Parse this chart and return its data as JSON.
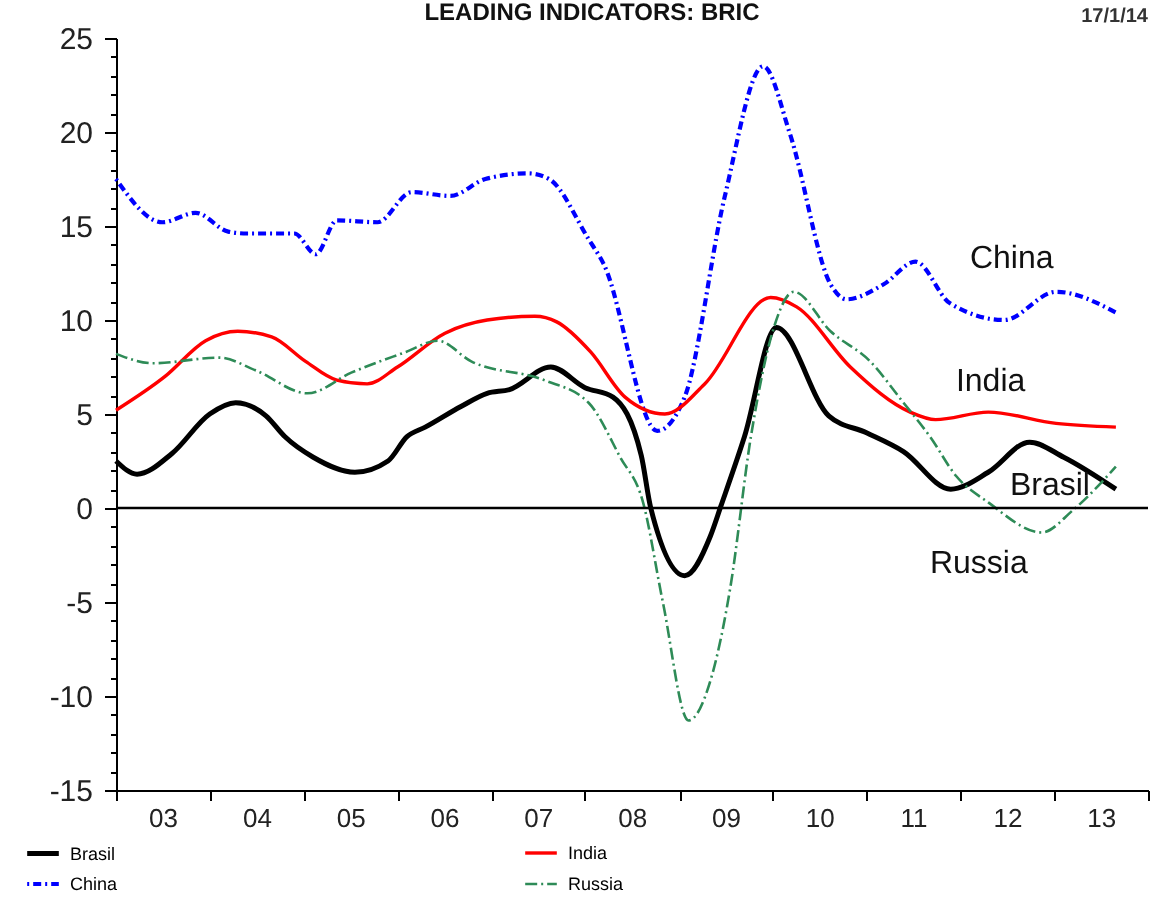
{
  "chart_data": {
    "type": "line",
    "title": "LEADING INDICATORS: BRIC",
    "annotations": [
      "17/1/14"
    ],
    "xlim": [
      "2003",
      "2014"
    ],
    "ylim": [
      -15,
      25
    ],
    "xticks": [
      {
        "value": "2003",
        "label": null
      },
      {
        "value": "2003-07",
        "label": "03"
      },
      {
        "value": "2004",
        "label": null
      },
      {
        "value": "2004-07",
        "label": "04"
      },
      {
        "value": "2005",
        "label": null
      },
      {
        "value": "2005-07",
        "label": "05"
      },
      {
        "value": "2006",
        "label": null
      },
      {
        "value": "2006-07",
        "label": "06"
      },
      {
        "value": "2007",
        "label": null
      },
      {
        "value": "2007-07",
        "label": "07"
      },
      {
        "value": "2008",
        "label": null
      },
      {
        "value": "2008-07",
        "label": "08"
      },
      {
        "value": "2009",
        "label": null
      },
      {
        "value": "2009-07",
        "label": "09"
      },
      {
        "value": "2010",
        "label": null
      },
      {
        "value": "2010-07",
        "label": "10"
      },
      {
        "value": "2011",
        "label": null
      },
      {
        "value": "2011-07",
        "label": "11"
      },
      {
        "value": "2012",
        "label": null
      },
      {
        "value": "2012-07",
        "label": "12"
      },
      {
        "value": "2013",
        "label": null
      },
      {
        "value": "2013-07",
        "label": "13"
      },
      {
        "value": "2014",
        "label": null
      }
    ],
    "yticks": [
      -15,
      {
        "value": -14,
        "label": null
      },
      {
        "value": -13,
        "label": null
      },
      {
        "value": -12,
        "label": null
      },
      {
        "value": -11,
        "label": null
      },
      -10,
      {
        "value": -9,
        "label": null
      },
      {
        "value": -8,
        "label": null
      },
      {
        "value": -7,
        "label": null
      },
      {
        "value": -6,
        "label": null
      },
      -5,
      {
        "value": -4,
        "label": null
      },
      {
        "value": -3,
        "label": null
      },
      {
        "value": -2,
        "label": null
      },
      {
        "value": -1,
        "label": null
      },
      0,
      {
        "value": 1,
        "label": null
      },
      {
        "value": 2,
        "label": null
      },
      {
        "value": 3,
        "label": null
      },
      {
        "value": 4,
        "label": null
      },
      5,
      {
        "value": 6,
        "label": null
      },
      {
        "value": 7,
        "label": null
      },
      {
        "value": 8,
        "label": null
      },
      {
        "value": 9,
        "label": null
      },
      10,
      {
        "value": 11,
        "label": null
      },
      {
        "value": 12,
        "label": null
      },
      {
        "value": 13,
        "label": null
      },
      {
        "value": 14,
        "label": null
      },
      15,
      {
        "value": 16,
        "label": null
      },
      {
        "value": 17,
        "label": null
      },
      {
        "value": 18,
        "label": null
      },
      {
        "value": 19,
        "label": null
      },
      20,
      {
        "value": 21,
        "label": null
      },
      {
        "value": 22,
        "label": null
      },
      {
        "value": 23,
        "label": null
      },
      {
        "value": 24,
        "label": null
      },
      25
    ],
    "ref_lines": [
      {
        "axis": "y",
        "value": 0,
        "color": "#000000"
      }
    ],
    "legend": "bottom",
    "series": [
      {
        "name": "Brasil",
        "color": "#000000",
        "line_style": "solid",
        "x": [
          "2003-01-01",
          "2003-03-24",
          "2003-08-07",
          "2004-01-01",
          "2004-04-11",
          "2004-08-07",
          "2004-10-19",
          "2005-02-07",
          "2005-07-19",
          "2005-11-25",
          "2006-02-07",
          "2006-04-19",
          "2006-09-05",
          "2006-12-16",
          "2007-03-13",
          "2007-08-21",
          "2008-01-01",
          "2008-04-19",
          "2008-08-07",
          "2008-09-13",
          "2009-01-23",
          "2009-05-03",
          "2009-06-13",
          "2009-09-13",
          "2010-01-15",
          "2010-08-07",
          "2011-01-01",
          "2011-05-25",
          "2011-11-25",
          "2012-04-19",
          "2012-09-27",
          "2013-02-07",
          "2013-08-29"
        ],
        "values": [
          2.5,
          1.8,
          2.9,
          5.0,
          5.6,
          4.9,
          3.8,
          2.7,
          1.9,
          2.5,
          3.8,
          4.3,
          5.4,
          6.1,
          6.3,
          7.5,
          6.4,
          5.9,
          2.8,
          0.0,
          -3.6,
          -1.5,
          0.1,
          3.8,
          9.6,
          4.9,
          4.0,
          3.0,
          1.0,
          1.9,
          3.5,
          2.7,
          1.0
        ]
      },
      {
        "name": "China",
        "color": "#0000ff",
        "line_style": "dotted",
        "x": [
          "2003-01-01",
          "2003-07-01",
          "2003-11-07",
          "2004-03-13",
          "2004-05-25",
          "2004-11-25",
          "2005-02-17",
          "2005-05-10",
          "2005-10-15",
          "2006-02-25",
          "2006-07-26",
          "2006-12-09",
          "2007-05-25",
          "2007-08-14",
          "2008-01-15",
          "2008-03-13",
          "2008-10-08",
          "2009-01-23",
          "2009-06-27",
          "2009-11-25",
          "2010-03-09",
          "2010-08-14",
          "2010-10-15",
          "2011-03-09",
          "2011-07-11",
          "2011-11-21",
          "2012-06-20",
          "2013-01-08",
          "2013-08-29"
        ],
        "values": [
          17.5,
          15.2,
          15.7,
          14.7,
          14.6,
          14.6,
          13.5,
          15.3,
          15.2,
          16.8,
          16.6,
          17.5,
          17.8,
          17.5,
          14.3,
          13.0,
          4.1,
          5.9,
          16.5,
          23.5,
          19.9,
          11.9,
          11.1,
          11.9,
          13.1,
          10.9,
          10.0,
          11.5,
          10.4
        ]
      },
      {
        "name": "India",
        "color": "#ff0000",
        "line_style": "solid",
        "x": [
          "2003-01-01",
          "2003-07-11",
          "2003-12-16",
          "2004-04-19",
          "2004-08-29",
          "2005-01-08",
          "2005-05-10",
          "2005-09-05",
          "2006-01-01",
          "2006-07-05",
          "2006-12-16",
          "2007-06-20",
          "2007-09-13",
          "2008-01-23",
          "2008-06-05",
          "2008-11-07",
          "2009-04-11",
          "2009-12-24",
          "2010-04-04",
          "2010-10-30",
          "2011-06-20",
          "2011-09-27",
          "2012-04-19",
          "2013-01-08",
          "2013-08-29"
        ],
        "values": [
          5.2,
          7.0,
          8.9,
          9.4,
          9.1,
          7.8,
          6.8,
          6.6,
          7.5,
          9.3,
          10.0,
          10.2,
          9.9,
          8.3,
          5.9,
          5.0,
          6.6,
          11.2,
          10.7,
          7.5,
          5.1,
          4.7,
          5.1,
          4.5,
          4.3
        ]
      },
      {
        "name": "Russia",
        "color": "#2e8b57",
        "line_style": "dashed",
        "x": [
          "2003-01-01",
          "2003-05-25",
          "2004-02-07",
          "2004-07-01",
          "2005-01-15",
          "2005-07-05",
          "2006-02-03",
          "2006-06-05",
          "2006-10-15",
          "2007-07-26",
          "2008-01-15",
          "2008-05-17",
          "2008-08-14",
          "2008-10-30",
          "2009-02-07",
          "2009-05-03",
          "2009-07-19",
          "2009-10-08",
          "2010-01-01",
          "2010-03-24",
          "2010-08-14",
          "2011-01-15",
          "2011-05-25",
          "2011-09-05",
          "2011-12-16",
          "2012-04-19",
          "2012-11-13",
          "2013-03-16",
          "2013-08-29"
        ],
        "values": [
          8.2,
          7.7,
          8.0,
          7.3,
          6.1,
          7.2,
          8.3,
          8.9,
          7.8,
          6.8,
          5.6,
          2.7,
          0.3,
          -5.0,
          -11.3,
          -9.2,
          -4.3,
          3.8,
          9.4,
          11.5,
          9.4,
          7.8,
          5.6,
          3.8,
          1.7,
          0.3,
          -1.3,
          -0.1,
          2.2
        ]
      }
    ]
  }
}
